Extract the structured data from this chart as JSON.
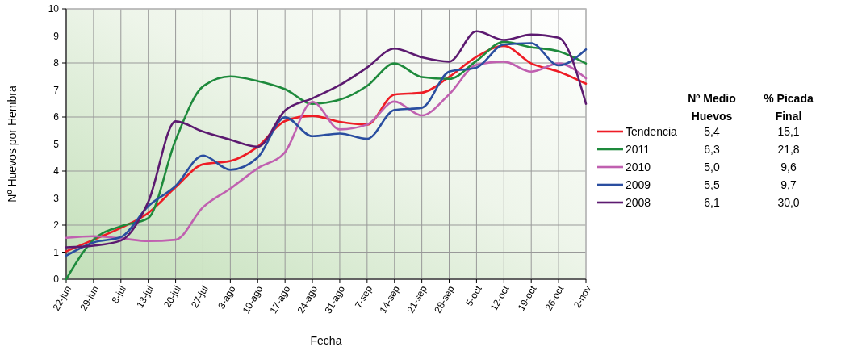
{
  "chart_data": {
    "type": "line",
    "xlabel": "Fecha",
    "ylabel": "Nº Huevos por Hembra",
    "categories": [
      "22-jun",
      "29-jun",
      "8-jul",
      "13-jul",
      "20-jul",
      "27-jul",
      "3-ago",
      "10-ago",
      "17-ago",
      "24-ago",
      "31-ago",
      "7-sep",
      "14-sep",
      "21-sep",
      "28-sep",
      "5-oct",
      "12-oct",
      "19-oct",
      "26-oct",
      "2-nov"
    ],
    "series": [
      {
        "name": "Tendencia",
        "color": "#ee1c25",
        "values": [
          1.03,
          1.46,
          1.9,
          2.45,
          3.4,
          4.25,
          4.37,
          4.9,
          5.85,
          6.04,
          5.82,
          5.72,
          6.83,
          6.9,
          7.48,
          8.23,
          8.63,
          7.98,
          7.68,
          7.23
        ]
      },
      {
        "name": "2011",
        "color": "#1e8a3c",
        "values": [
          0,
          1.46,
          1.96,
          2.26,
          5.15,
          7.13,
          7.5,
          7.33,
          7.03,
          6.49,
          6.64,
          7.15,
          7.98,
          7.48,
          7.41,
          8.08,
          8.78,
          8.58,
          8.43,
          7.98
        ]
      },
      {
        "name": "2010",
        "color": "#c060b0",
        "values": [
          1.53,
          1.59,
          1.51,
          1.41,
          1.46,
          2.66,
          3.35,
          4.1,
          4.7,
          6.56,
          5.54,
          5.72,
          6.57,
          6.06,
          6.84,
          7.93,
          8.05,
          7.68,
          7.98,
          7.43
        ]
      },
      {
        "name": "2009",
        "color": "#2a4ea0",
        "values": [
          0.87,
          1.36,
          1.56,
          2.7,
          3.45,
          4.57,
          4.05,
          4.5,
          5.99,
          5.29,
          5.39,
          5.19,
          6.26,
          6.34,
          7.68,
          7.83,
          8.68,
          8.73,
          7.91,
          8.5
        ]
      },
      {
        "name": "2008",
        "color": "#5c1a70",
        "values": [
          1.18,
          1.24,
          1.43,
          2.86,
          5.84,
          5.46,
          5.16,
          4.9,
          6.24,
          6.69,
          7.18,
          7.83,
          8.53,
          8.21,
          8.05,
          9.17,
          8.85,
          9.05,
          8.93,
          6.49
        ]
      }
    ],
    "ylim": [
      0,
      10
    ],
    "yticks": [
      0,
      1,
      2,
      3,
      4,
      5,
      6,
      7,
      8,
      9,
      10
    ],
    "grid": true,
    "legend": "right",
    "marker": "none",
    "line_style": "solid",
    "annotations": [
      "Nº Medio Huevos",
      "% Picada Final",
      "5,4",
      "15,1",
      "6,3",
      "21,8",
      "5,0",
      "9,6",
      "5,5",
      "9,7",
      "6,1",
      "30,0"
    ]
  }
}
